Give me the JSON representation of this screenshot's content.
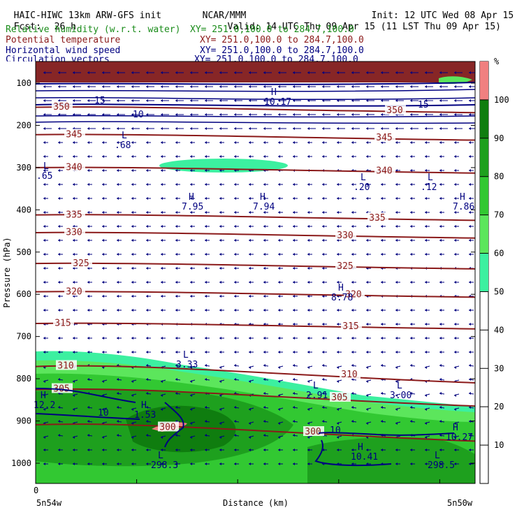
{
  "header": {
    "title": "HAIC-HIWC 13km ARW-GFS init",
    "org": "NCAR/MMM",
    "init": "Init: 12 UTC Wed 08 Apr 15",
    "fcst_label": "Fcst:",
    "fcst_value": "26 h",
    "valid": "Valid: 14 UTC Thu 09 Apr 15 (11 LST Thu 09 Apr 15)",
    "legend": [
      {
        "name": "Relative humidity (w.r.t. water)",
        "xy": "XY= 251.0,100.0 to 284.7,100.0",
        "color": "#1a8c1a"
      },
      {
        "name": "Potential temperature",
        "xy": "XY= 251.0,100.0 to 284.7,100.0",
        "color": "#8b1a1a"
      },
      {
        "name": "Horizontal wind speed",
        "xy": "XY= 251.0,100.0 to 284.7,100.0",
        "color": "#000080"
      },
      {
        "name": "Circulation vectors",
        "xy": "XY= 251.0,100.0 to 284.7,100.0",
        "color": "#000080"
      }
    ]
  },
  "chart_data": {
    "type": "heatmap",
    "ylabel": "Pressure (hPa)",
    "xlabel": "Distance (km)",
    "y_ticks": [
      100,
      200,
      300,
      400,
      500,
      600,
      700,
      800,
      900,
      1000
    ],
    "x_tick_zero": "0",
    "x_left_label": "5n54w",
    "x_right_label": "5n50w",
    "colorbar_unit": "%",
    "colorbar_ticks": [
      10,
      20,
      30,
      40,
      50,
      60,
      70,
      80,
      90,
      100
    ],
    "colorbar_bins": [
      {
        "from": 50,
        "to": 60,
        "color": "#3cf0a0"
      },
      {
        "from": 60,
        "to": 70,
        "color": "#5ce65c"
      },
      {
        "from": 70,
        "to": 80,
        "color": "#32c832"
      },
      {
        "from": 80,
        "to": 90,
        "color": "#1ea01e"
      },
      {
        "from": 90,
        "to": 100,
        "color": "#0f7d0f"
      },
      {
        "from": 100,
        "to": 110,
        "color": "#f08080"
      }
    ],
    "theta_isentropes_K": [
      {
        "label": "350",
        "p": 160
      },
      {
        "label": "345",
        "p": 225
      },
      {
        "label": "340",
        "p": 303
      },
      {
        "label": "335",
        "p": 415
      },
      {
        "label": "330",
        "p": 457
      },
      {
        "label": "325",
        "p": 530
      },
      {
        "label": "320",
        "p": 597
      },
      {
        "label": "315",
        "p": 672
      },
      {
        "label": "310",
        "p": 780
      },
      {
        "label": "305",
        "p": 835
      },
      {
        "label": "300",
        "p": 918
      }
    ],
    "wind_labels": [
      "10",
      "15",
      "10",
      "15",
      "10"
    ],
    "extrema": [
      {
        "type": "L",
        "value": ".65"
      },
      {
        "type": "L",
        "value": ".68"
      },
      {
        "type": "H",
        "value": "7.95"
      },
      {
        "type": "H",
        "value": "7.94"
      },
      {
        "type": "L",
        "value": ".20"
      },
      {
        "type": "L",
        "value": ".12"
      },
      {
        "type": "H",
        "value": "7.86"
      },
      {
        "type": "H",
        "value": "8.78"
      },
      {
        "type": "L",
        "value": "3.33"
      },
      {
        "type": "L",
        "value": "2.91"
      },
      {
        "type": "L",
        "value": "3.00"
      },
      {
        "type": "H",
        "value": "12.2"
      },
      {
        "type": "H",
        "value": "1.53"
      },
      {
        "type": "H",
        "value": "10.27"
      },
      {
        "type": "H",
        "value": "10.41"
      },
      {
        "type": "L",
        "value": "298.3"
      },
      {
        "type": "L",
        "value": "298.5"
      },
      {
        "type": "H",
        "value": "10.17"
      }
    ]
  }
}
